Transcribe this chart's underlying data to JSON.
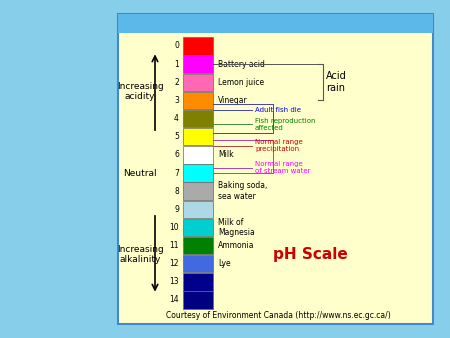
{
  "bg_outer": "#87CEEB",
  "bg_inner": "#FFFFCC",
  "title": "pH Scale",
  "title_color": "#CC0000",
  "title_fontsize": 11,
  "footer": "Courtesy of Environment Canada (http://www.ns.ec.gc.ca/)",
  "footer_fontsize": 5.5,
  "ph_values": [
    0,
    1,
    2,
    3,
    4,
    5,
    6,
    7,
    8,
    9,
    10,
    11,
    12,
    13,
    14
  ],
  "bar_colors": [
    "#FF0000",
    "#FF00FF",
    "#FF69B4",
    "#FF8C00",
    "#808000",
    "#FFFF00",
    "#FFFFFF",
    "#00FFFF",
    "#AAAAAA",
    "#ADD8E6",
    "#00CED1",
    "#008000",
    "#4169E1",
    "#00008B",
    "#000080"
  ],
  "substances": [
    "",
    "Battery acid",
    "Lemon juice",
    "Vinegar",
    "",
    "",
    "Milk",
    "",
    "Baking soda,\nsea water",
    "",
    "Milk of\nMagnesia",
    "Ammonia",
    "Lye",
    "",
    ""
  ],
  "ann_adult_fish": {
    "text": "Adult fish die",
    "color": "#0000FF",
    "fontsize": 5
  },
  "ann_fish_repro": {
    "text": "Fish reproduction\naffected",
    "color": "#008000",
    "fontsize": 5
  },
  "ann_precip": {
    "text": "Normal range\nprecipitation",
    "color": "#CC0000",
    "fontsize": 5
  },
  "ann_stream": {
    "text": "Normal range\nof stream water",
    "color": "#FF00FF",
    "fontsize": 5
  },
  "ann_acid_rain": {
    "text": "Acid\nrain",
    "color": "#000000",
    "fontsize": 7
  }
}
